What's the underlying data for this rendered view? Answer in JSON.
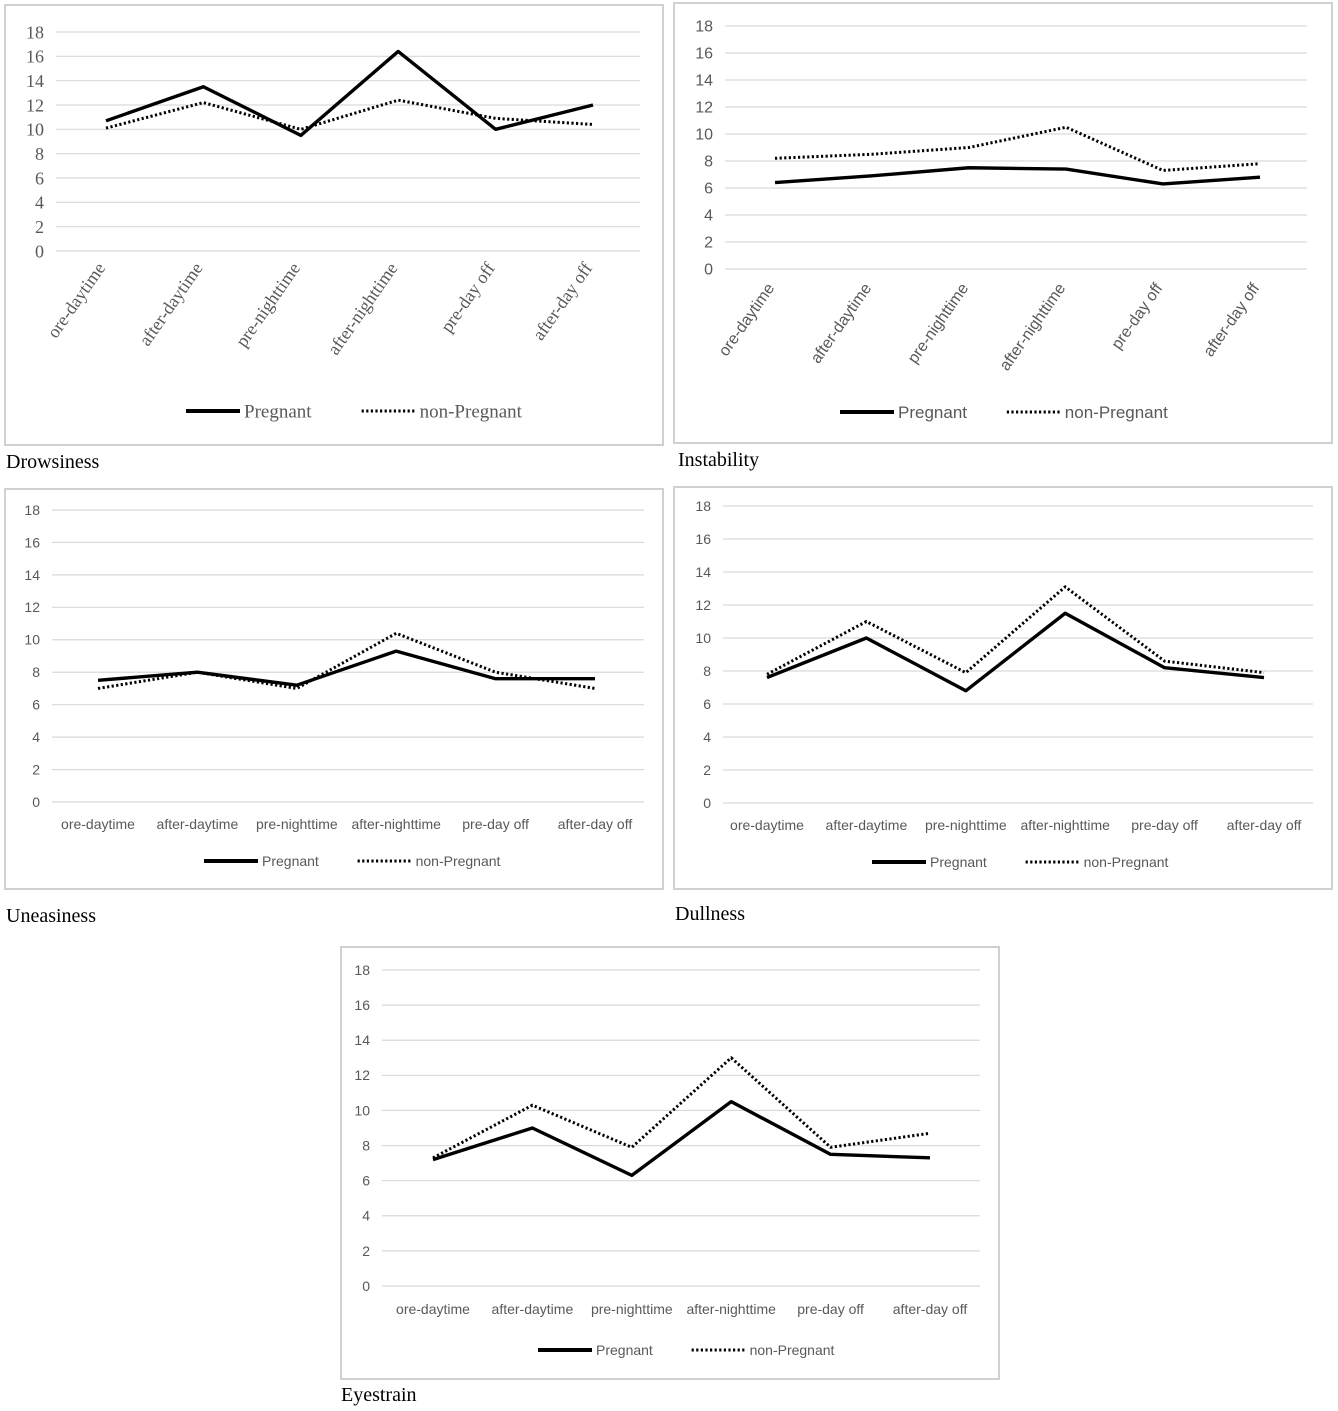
{
  "chart_data": [
    {
      "type": "line",
      "title": "",
      "caption": "Drowsiness",
      "categories": [
        "ore-daytime",
        "after-daytime",
        "pre-nighttime",
        "after-nighttime",
        "pre-day off",
        "after-day off"
      ],
      "ylim": [
        0,
        18
      ],
      "yticks": [
        0,
        2,
        4,
        6,
        8,
        10,
        12,
        14,
        16,
        18
      ],
      "grid": true,
      "legend_position": "bottom",
      "series": [
        {
          "name": "Pregnant",
          "style": "solid",
          "values": [
            10.7,
            13.5,
            9.5,
            16.4,
            10.0,
            12.0
          ]
        },
        {
          "name": "non-Pregnant",
          "style": "dotted",
          "values": [
            10.1,
            12.2,
            10.0,
            12.4,
            10.9,
            10.4
          ]
        }
      ]
    },
    {
      "type": "line",
      "title": "",
      "caption": "Instability",
      "categories": [
        "ore-daytime",
        "after-daytime",
        "pre-nighttime",
        "after-nighttime",
        "pre-day off",
        "after-day off"
      ],
      "ylim": [
        0,
        18
      ],
      "yticks": [
        0,
        2,
        4,
        6,
        8,
        10,
        12,
        14,
        16,
        18
      ],
      "grid": true,
      "legend_position": "bottom",
      "series": [
        {
          "name": "Pregnant",
          "style": "solid",
          "values": [
            6.4,
            6.9,
            7.5,
            7.4,
            6.3,
            6.8
          ]
        },
        {
          "name": "non-Pregnant",
          "style": "dotted",
          "values": [
            8.2,
            8.5,
            9.0,
            10.5,
            7.3,
            7.8
          ]
        }
      ]
    },
    {
      "type": "line",
      "title": "",
      "caption": "Uneasiness",
      "categories": [
        "ore-daytime",
        "after-daytime",
        "pre-nighttime",
        "after-nighttime",
        "pre-day off",
        "after-day off"
      ],
      "ylim": [
        0,
        18
      ],
      "yticks": [
        0,
        2,
        4,
        6,
        8,
        10,
        12,
        14,
        16,
        18
      ],
      "grid": true,
      "legend_position": "bottom",
      "series": [
        {
          "name": "Pregnant",
          "style": "solid",
          "values": [
            7.5,
            8.0,
            7.2,
            9.3,
            7.6,
            7.6
          ]
        },
        {
          "name": "non-Pregnant",
          "style": "dotted",
          "values": [
            7.0,
            8.0,
            7.0,
            10.4,
            8.0,
            7.0
          ]
        }
      ]
    },
    {
      "type": "line",
      "title": "",
      "caption": "Dullness",
      "categories": [
        "ore-daytime",
        "after-daytime",
        "pre-nighttime",
        "after-nighttime",
        "pre-day off",
        "after-day off"
      ],
      "ylim": [
        0,
        18
      ],
      "yticks": [
        0,
        2,
        4,
        6,
        8,
        10,
        12,
        14,
        16,
        18
      ],
      "grid": true,
      "legend_position": "bottom",
      "series": [
        {
          "name": "Pregnant",
          "style": "solid",
          "values": [
            7.6,
            10.0,
            6.8,
            11.5,
            8.2,
            7.6
          ]
        },
        {
          "name": "non-Pregnant",
          "style": "dotted",
          "values": [
            7.8,
            11.0,
            7.9,
            13.1,
            8.6,
            7.9
          ]
        }
      ]
    },
    {
      "type": "line",
      "title": "",
      "caption": "Eyestrain",
      "categories": [
        "ore-daytime",
        "after-daytime",
        "pre-nighttime",
        "after-nighttime",
        "pre-day off",
        "after-day off"
      ],
      "ylim": [
        0,
        18
      ],
      "yticks": [
        0,
        2,
        4,
        6,
        8,
        10,
        12,
        14,
        16,
        18
      ],
      "grid": true,
      "legend_position": "bottom",
      "series": [
        {
          "name": "Pregnant",
          "style": "solid",
          "values": [
            7.2,
            9.0,
            6.3,
            10.5,
            7.5,
            7.3
          ]
        },
        {
          "name": "non-Pregnant",
          "style": "dotted",
          "values": [
            7.3,
            10.3,
            7.9,
            13.0,
            7.9,
            8.7
          ]
        }
      ]
    }
  ],
  "colors": {
    "series_line": "#000000",
    "grid": "#d9d9d9",
    "tick_text": "#595959",
    "panel_border": "#d0d0d0"
  }
}
